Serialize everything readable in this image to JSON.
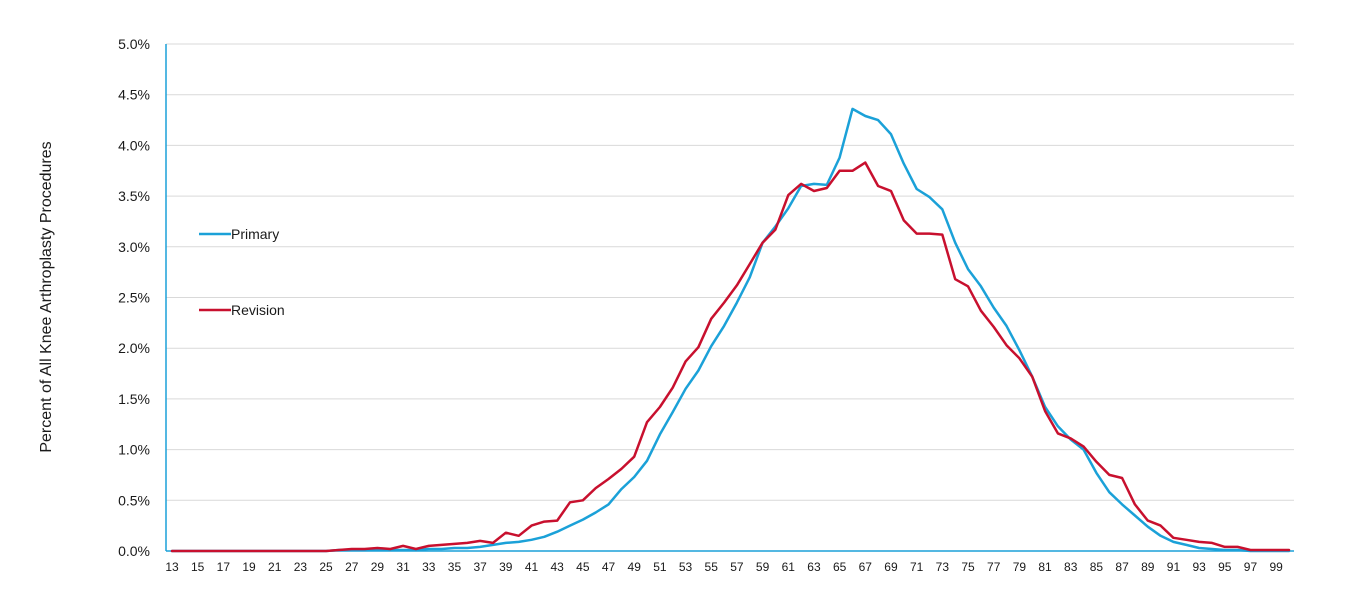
{
  "chart_data": {
    "type": "line",
    "title": "",
    "xlabel": "",
    "ylabel": "Percent of All Knee Arthroplasty Procedures",
    "x": [
      13,
      14,
      15,
      16,
      17,
      18,
      19,
      20,
      21,
      22,
      23,
      24,
      25,
      26,
      27,
      28,
      29,
      30,
      31,
      32,
      33,
      34,
      35,
      36,
      37,
      38,
      39,
      40,
      41,
      42,
      43,
      44,
      45,
      46,
      47,
      48,
      49,
      50,
      51,
      52,
      53,
      54,
      55,
      56,
      57,
      58,
      59,
      60,
      61,
      62,
      63,
      64,
      65,
      66,
      67,
      68,
      69,
      70,
      71,
      72,
      73,
      74,
      75,
      76,
      77,
      78,
      79,
      80,
      81,
      82,
      83,
      84,
      85,
      86,
      87,
      88,
      89,
      90,
      91,
      92,
      93,
      94,
      95,
      96,
      97,
      98,
      99,
      100
    ],
    "x_tick_labels": [
      "13",
      "15",
      "17",
      "19",
      "21",
      "23",
      "25",
      "27",
      "29",
      "31",
      "33",
      "35",
      "37",
      "39",
      "41",
      "43",
      "45",
      "47",
      "49",
      "51",
      "53",
      "55",
      "57",
      "59",
      "61",
      "63",
      "65",
      "67",
      "69",
      "71",
      "73",
      "75",
      "77",
      "79",
      "81",
      "83",
      "85",
      "87",
      "89",
      "91",
      "93",
      "95",
      "97",
      "99"
    ],
    "ylim": [
      0,
      5.0
    ],
    "y_ticks": [
      0,
      0.5,
      1.0,
      1.5,
      2.0,
      2.5,
      3.0,
      3.5,
      4.0,
      4.5,
      5.0
    ],
    "y_tick_labels": [
      "0.0%",
      "0.5%",
      "1.0%",
      "1.5%",
      "2.0%",
      "2.5%",
      "3.0%",
      "3.5%",
      "4.0%",
      "4.5%",
      "5.0%"
    ],
    "grid": "horizontal",
    "legend_position": "left",
    "series": [
      {
        "name": "Primary",
        "color": "#1ba1d8",
        "values": [
          0,
          0,
          0,
          0,
          0,
          0,
          0,
          0,
          0,
          0,
          0,
          0,
          0,
          0.01,
          0.01,
          0.01,
          0.01,
          0.01,
          0.01,
          0.01,
          0.02,
          0.02,
          0.03,
          0.03,
          0.04,
          0.06,
          0.08,
          0.09,
          0.11,
          0.14,
          0.19,
          0.25,
          0.31,
          0.38,
          0.46,
          0.61,
          0.73,
          0.89,
          1.15,
          1.37,
          1.6,
          1.78,
          2.02,
          2.22,
          2.45,
          2.7,
          3.04,
          3.2,
          3.38,
          3.6,
          3.62,
          3.61,
          3.88,
          4.36,
          4.29,
          4.25,
          4.11,
          3.82,
          3.57,
          3.49,
          3.37,
          3.04,
          2.78,
          2.61,
          2.4,
          2.22,
          1.98,
          1.72,
          1.42,
          1.23,
          1.1,
          1.0,
          0.77,
          0.58,
          0.46,
          0.35,
          0.24,
          0.15,
          0.09,
          0.06,
          0.03,
          0.02,
          0.01,
          0.01,
          0,
          0,
          0,
          0
        ]
      },
      {
        "name": "Revision",
        "color": "#c8102e",
        "values": [
          0,
          0,
          0,
          0,
          0,
          0,
          0,
          0,
          0,
          0,
          0,
          0,
          0,
          0.01,
          0.02,
          0.02,
          0.03,
          0.02,
          0.05,
          0.02,
          0.05,
          0.06,
          0.07,
          0.08,
          0.1,
          0.08,
          0.18,
          0.15,
          0.25,
          0.29,
          0.3,
          0.48,
          0.5,
          0.62,
          0.71,
          0.81,
          0.93,
          1.27,
          1.42,
          1.61,
          1.87,
          2.01,
          2.29,
          2.45,
          2.62,
          2.83,
          3.04,
          3.17,
          3.51,
          3.62,
          3.55,
          3.58,
          3.75,
          3.75,
          3.83,
          3.6,
          3.55,
          3.26,
          3.13,
          3.13,
          3.12,
          2.68,
          2.61,
          2.37,
          2.21,
          2.03,
          1.9,
          1.72,
          1.38,
          1.16,
          1.11,
          1.03,
          0.88,
          0.75,
          0.72,
          0.46,
          0.3,
          0.25,
          0.13,
          0.11,
          0.09,
          0.08,
          0.04,
          0.04,
          0.01,
          0.01,
          0.01,
          0.01
        ]
      }
    ]
  }
}
